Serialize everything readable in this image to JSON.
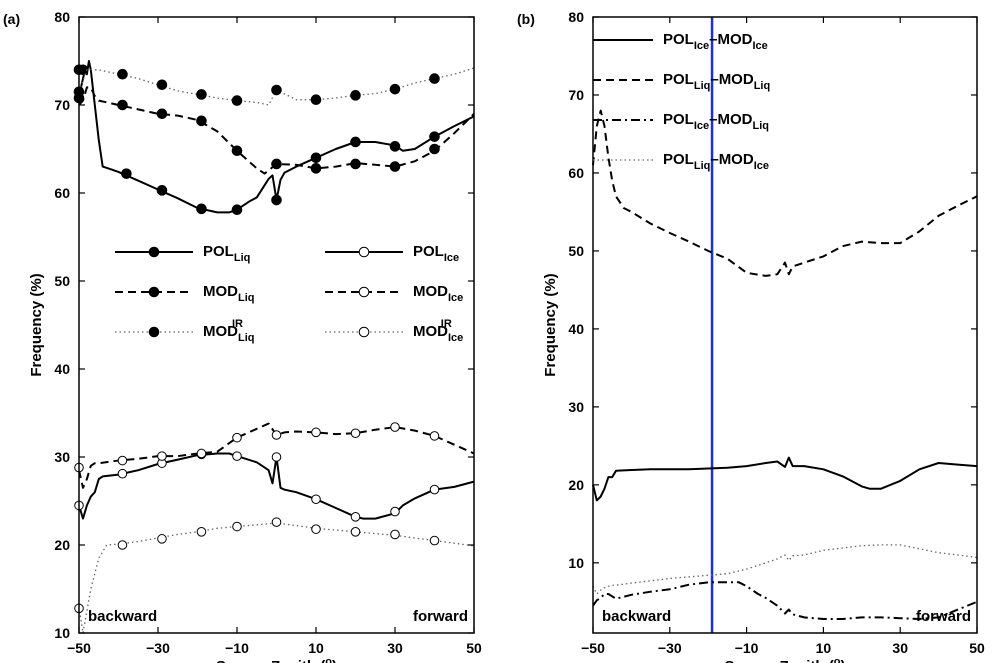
{
  "chart_data": [
    {
      "panel": "(a)",
      "type": "line",
      "xlabel": "Sensor Zenith (o)",
      "ylabel": "Frequency (%)",
      "xlim": [
        -50,
        50
      ],
      "ylim": [
        10,
        80
      ],
      "xticks": [
        -50,
        -30,
        -10,
        10,
        30,
        50
      ],
      "yticks": [
        10,
        20,
        30,
        40,
        50,
        60,
        70,
        80
      ],
      "grid": false,
      "legend_position": "center",
      "annotations": [
        "backward",
        "forward"
      ],
      "series": [
        {
          "name": "POL_Liq",
          "style": "solid",
          "marker": "filled",
          "x": [
            -50,
            -49.5,
            -49,
            -48.5,
            -48,
            -47.5,
            -47,
            -46,
            -45,
            -44,
            -42,
            -40,
            -38,
            -35,
            -30,
            -25,
            -20,
            -15,
            -12,
            -10,
            -7,
            -5,
            -2,
            -1,
            0,
            1,
            2,
            5,
            10,
            15,
            20,
            25,
            30,
            32,
            35,
            40,
            45,
            50
          ],
          "y": [
            71,
            72,
            73,
            74,
            73.5,
            75,
            74,
            70,
            66,
            63,
            62.7,
            62.4,
            62,
            61.4,
            60.4,
            59.4,
            58.3,
            57.8,
            57.8,
            58.1,
            59,
            59.5,
            61.6,
            62,
            59.2,
            61.5,
            62.3,
            63,
            64,
            65,
            65.8,
            65.8,
            65.4,
            64.8,
            65,
            66.4,
            67.6,
            68.7
          ],
          "marker_x": [
            -50,
            -49,
            -38,
            -29,
            -19,
            -10,
            0,
            10,
            20,
            30,
            40
          ],
          "marker_y": [
            74,
            74,
            62.2,
            60.3,
            58.2,
            58.1,
            59.2,
            64,
            65.8,
            65.3,
            66.4
          ]
        },
        {
          "name": "MOD_Liq",
          "style": "dashed",
          "marker": "filled",
          "x": [
            -50,
            -49,
            -48,
            -47,
            -46,
            -45,
            -43,
            -40,
            -35,
            -30,
            -25,
            -20,
            -15,
            -10,
            -5,
            -3,
            0,
            5,
            10,
            15,
            20,
            25,
            30,
            35,
            40,
            45,
            50
          ],
          "y": [
            70,
            70.5,
            72,
            72,
            71,
            70.5,
            70.3,
            70,
            69.5,
            69,
            68.8,
            68.3,
            67,
            64.8,
            62.8,
            62.2,
            63.3,
            63.2,
            62.8,
            63,
            63.4,
            63.2,
            63,
            63.6,
            64.8,
            66.8,
            69
          ],
          "marker_x": [
            -50,
            -39,
            -29,
            -19,
            -10,
            0,
            10,
            20,
            30,
            40
          ],
          "marker_y": [
            70.8,
            70,
            69,
            68.2,
            64.8,
            63.3,
            62.8,
            63.3,
            63,
            65
          ]
        },
        {
          "name": "MOD_Liq^IR",
          "style": "dotted",
          "marker": "filled",
          "x": [
            -50,
            -48,
            -45,
            -40,
            -35,
            -30,
            -25,
            -20,
            -15,
            -10,
            -5,
            -2,
            0,
            5,
            10,
            15,
            20,
            25,
            30,
            35,
            40,
            45,
            50
          ],
          "y": [
            71.5,
            74,
            74,
            73.5,
            73,
            72.3,
            71.6,
            71.2,
            70.8,
            70.5,
            70.3,
            70,
            71.7,
            70.6,
            70.6,
            70.8,
            71.1,
            71.3,
            71.8,
            72.5,
            73,
            73.5,
            74.2
          ],
          "marker_x": [
            -50,
            -39,
            -29,
            -19,
            -10,
            0,
            10,
            20,
            30,
            40
          ],
          "marker_y": [
            71.5,
            73.5,
            72.3,
            71.2,
            70.5,
            71.7,
            70.6,
            71.1,
            71.8,
            73
          ]
        },
        {
          "name": "POL_Ice",
          "style": "solid",
          "marker": "open",
          "x": [
            -50,
            -49,
            -48,
            -47,
            -46,
            -45,
            -44,
            -42,
            -40,
            -35,
            -30,
            -25,
            -20,
            -15,
            -12,
            -10,
            -5,
            -2,
            -1,
            0,
            1,
            2,
            5,
            10,
            15,
            20,
            22,
            25,
            30,
            32,
            35,
            40,
            45,
            50
          ],
          "y": [
            24.5,
            23,
            24.5,
            25.5,
            26,
            27.5,
            27.8,
            27.9,
            28,
            28.5,
            29.2,
            29.7,
            30.2,
            30.4,
            30.4,
            30.1,
            29.4,
            28.5,
            27,
            30,
            26.5,
            26.3,
            26,
            25.2,
            24.2,
            23.2,
            23,
            23,
            23.6,
            24.5,
            25.3,
            26.3,
            26.6,
            27.2
          ],
          "marker_x": [
            -50,
            -39,
            -29,
            -19,
            -10,
            0,
            10,
            20,
            30,
            40
          ],
          "marker_y": [
            24.5,
            28.1,
            29.3,
            30.3,
            30.1,
            30,
            25.2,
            23.2,
            23.8,
            26.3
          ]
        },
        {
          "name": "MOD_Ice",
          "style": "dashed",
          "marker": "open",
          "x": [
            -50,
            -49,
            -48,
            -47,
            -46,
            -45,
            -40,
            -35,
            -30,
            -25,
            -20,
            -15,
            -10,
            -5,
            -2,
            0,
            2,
            5,
            10,
            15,
            20,
            25,
            30,
            35,
            40,
            45,
            50
          ],
          "y": [
            28.5,
            26.5,
            27.5,
            29,
            29.3,
            29.3,
            29.6,
            29.8,
            30.1,
            30.1,
            30.4,
            30.6,
            32.2,
            33.2,
            33.8,
            32.5,
            32.8,
            32.9,
            32.8,
            32.6,
            32.7,
            33.1,
            33.4,
            33,
            32.4,
            31.4,
            30.4
          ],
          "marker_x": [
            -50,
            -39,
            -29,
            -19,
            -10,
            0,
            10,
            20,
            30,
            40
          ],
          "marker_y": [
            28.8,
            29.6,
            30.1,
            30.4,
            32.2,
            32.5,
            32.8,
            32.7,
            33.4,
            32.4
          ]
        },
        {
          "name": "MOD_Ice^IR",
          "style": "dotted",
          "marker": "open",
          "x": [
            -50,
            -49,
            -47,
            -45,
            -43,
            -40,
            -35,
            -30,
            -25,
            -20,
            -15,
            -10,
            -5,
            0,
            5,
            10,
            15,
            20,
            25,
            30,
            35,
            40,
            45,
            50
          ],
          "y": [
            13,
            10,
            15,
            18.5,
            20,
            20.1,
            20.4,
            20.8,
            21.2,
            21.5,
            21.9,
            22.1,
            22.3,
            22.5,
            22.2,
            21.9,
            21.7,
            21.5,
            21.3,
            21.1,
            20.8,
            20.5,
            20.2,
            19.9
          ],
          "marker_x": [
            -50,
            -39,
            -29,
            -19,
            -10,
            0,
            10,
            20,
            30,
            40
          ],
          "marker_y": [
            12.8,
            20,
            20.7,
            21.5,
            22.1,
            22.6,
            21.8,
            21.5,
            21.2,
            20.5
          ]
        }
      ]
    },
    {
      "panel": "(b)",
      "type": "line",
      "xlabel": "Sensor Zenith (o)",
      "ylabel": "Frequency (%)",
      "xlim": [
        -50,
        50
      ],
      "ylim": [
        1,
        80
      ],
      "xticks": [
        -50,
        -30,
        -10,
        10,
        30,
        50
      ],
      "yticks": [
        10,
        20,
        30,
        40,
        50,
        60,
        70,
        80
      ],
      "grid": false,
      "legend_position": "top-right",
      "vertical_line": {
        "x": -19,
        "color": "#1f2fd6"
      },
      "annotations": [
        "backward",
        "forward"
      ],
      "series": [
        {
          "name": "POL_Ice-MOD_Ice",
          "style": "solid",
          "x": [
            -50,
            -49,
            -48,
            -47,
            -46,
            -45,
            -44,
            -40,
            -35,
            -30,
            -25,
            -20,
            -15,
            -10,
            -5,
            -2,
            0,
            1,
            2,
            5,
            10,
            15,
            20,
            22,
            25,
            30,
            35,
            40,
            45,
            50
          ],
          "y": [
            20,
            18,
            18.5,
            19.5,
            21,
            21,
            21.8,
            21.9,
            22,
            22,
            22,
            22.1,
            22.2,
            22.4,
            22.8,
            23,
            22.3,
            23.5,
            22.4,
            22.4,
            22,
            21.1,
            19.8,
            19.5,
            19.5,
            20.5,
            22,
            22.8,
            22.6,
            22.4
          ]
        },
        {
          "name": "POL_Liq-MOD_Liq",
          "style": "dashed",
          "x": [
            -50,
            -49,
            -48,
            -47,
            -46,
            -45,
            -44,
            -42,
            -40,
            -35,
            -30,
            -25,
            -20,
            -15,
            -10,
            -5,
            -2,
            0,
            1,
            2,
            5,
            10,
            15,
            20,
            25,
            30,
            35,
            40,
            45,
            50
          ],
          "y": [
            61,
            66,
            68,
            66,
            62,
            59,
            57,
            55.5,
            55,
            53.5,
            52.3,
            51.2,
            50,
            49,
            47.2,
            46.8,
            47,
            48.5,
            47,
            48,
            48.5,
            49.3,
            50.6,
            51.2,
            51,
            51,
            52.5,
            54.5,
            55.8,
            57
          ]
        },
        {
          "name": "POL_Ice-MOD_Liq",
          "style": "dashdot",
          "x": [
            -50,
            -49,
            -48,
            -47,
            -46,
            -44,
            -40,
            -35,
            -30,
            -25,
            -20,
            -15,
            -12,
            -10,
            -7,
            -5,
            -2,
            0,
            1,
            2,
            5,
            10,
            15,
            20,
            25,
            30,
            35,
            40,
            45,
            50
          ],
          "y": [
            4.5,
            5.2,
            5.5,
            6,
            6,
            5.4,
            5.9,
            6.3,
            6.6,
            7.2,
            7.5,
            7.5,
            7.5,
            7,
            6,
            5.5,
            4.5,
            3.5,
            4,
            3.4,
            3,
            2.8,
            2.8,
            3,
            3,
            2.9,
            2.8,
            3,
            4,
            5
          ]
        },
        {
          "name": "POL_Liq-MOD_Ice",
          "style": "dotted",
          "x": [
            -50,
            -49,
            -48,
            -47,
            -46,
            -45,
            -43,
            -40,
            -35,
            -30,
            -25,
            -20,
            -15,
            -10,
            -5,
            -2,
            0,
            1,
            2,
            5,
            10,
            15,
            20,
            25,
            30,
            35,
            40,
            45,
            50
          ],
          "y": [
            7,
            6,
            6.5,
            6.8,
            7,
            7.1,
            7.2,
            7.4,
            7.7,
            8,
            8.2,
            8.4,
            8.6,
            9.2,
            10,
            10.5,
            11,
            10.3,
            10.9,
            11,
            11.6,
            11.9,
            12.2,
            12.3,
            12.3,
            11.8,
            11.3,
            11,
            10.7
          ]
        }
      ]
    }
  ]
}
